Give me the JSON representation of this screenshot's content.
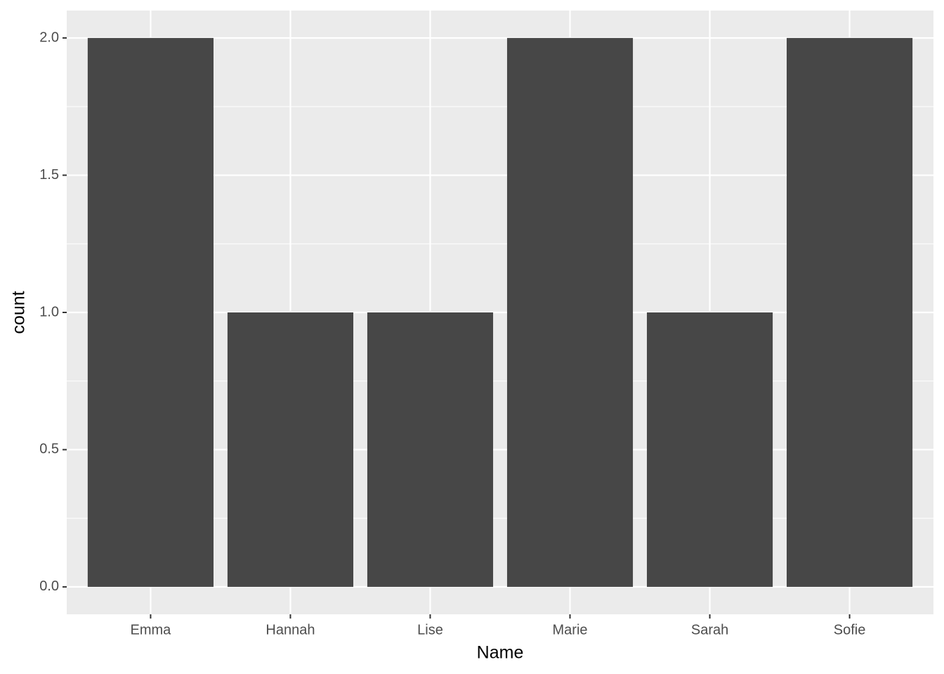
{
  "chart_data": {
    "type": "bar",
    "x_label": "Name",
    "y_label": "count",
    "categories": [
      "Emma",
      "Hannah",
      "Lise",
      "Marie",
      "Sarah",
      "Sofie"
    ],
    "values": [
      2,
      1,
      1,
      2,
      1,
      2
    ],
    "color": "#474747",
    "ylim": [
      -0.1,
      2.1
    ],
    "yticks": [
      {
        "value": 0,
        "label": "0.0"
      },
      {
        "value": 0.5,
        "label": "0.5"
      },
      {
        "value": 1,
        "label": "1.0"
      },
      {
        "value": 1.5,
        "label": "1.5"
      },
      {
        "value": 2,
        "label": "2.0"
      }
    ],
    "grid": true
  }
}
